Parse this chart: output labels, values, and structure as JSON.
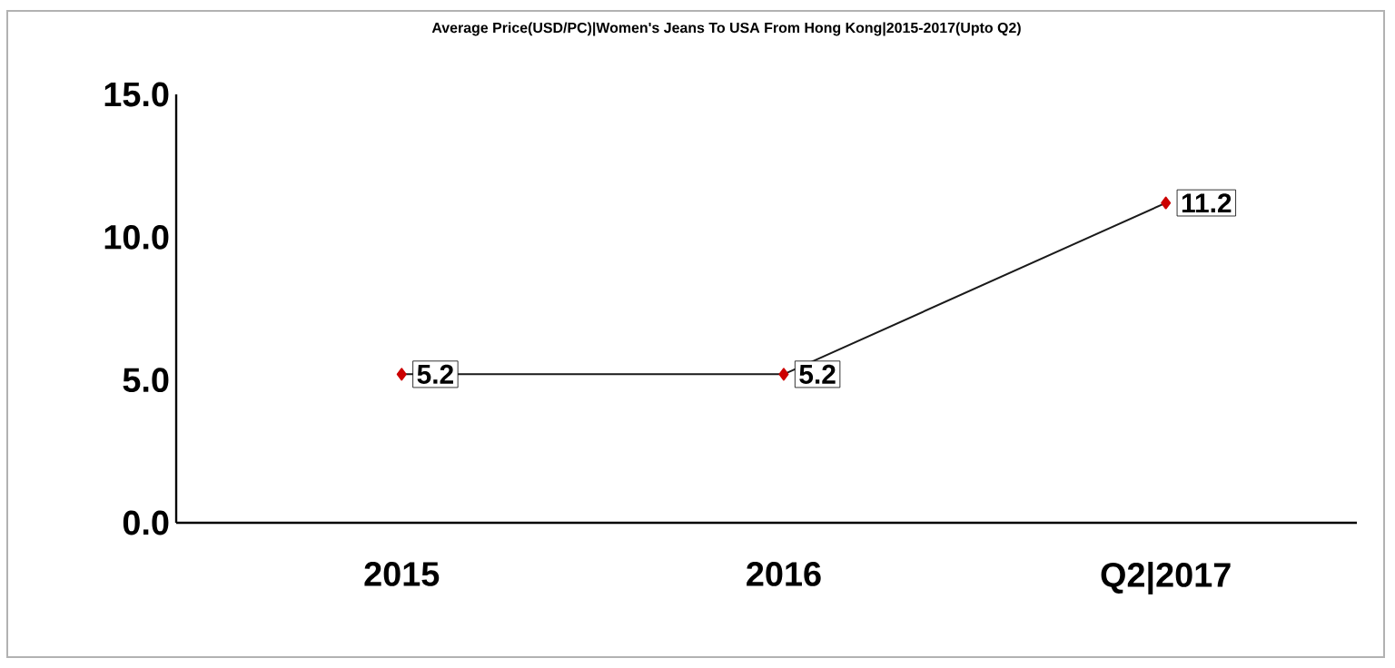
{
  "chart_data": {
    "type": "line",
    "title": "Average Price(USD/PC)|Women's Jeans To USA From Hong Kong|2015-2017(Upto Q2)",
    "categories": [
      "2015",
      "2016",
      "Q2|2017"
    ],
    "series": [
      {
        "color": "#1a1a1a",
        "values": [
          5.2,
          5.2,
          11.2
        ]
      }
    ],
    "ylim": [
      0,
      15
    ],
    "yticks": [
      {
        "value": 0,
        "label": "0.0"
      },
      {
        "value": 5,
        "label": "5.0"
      },
      {
        "value": 10,
        "label": "10.0"
      },
      {
        "value": 15,
        "label": "15.0"
      }
    ],
    "data_labels": true,
    "marker": "diamond",
    "line_style": "solid",
    "grid": false
  }
}
